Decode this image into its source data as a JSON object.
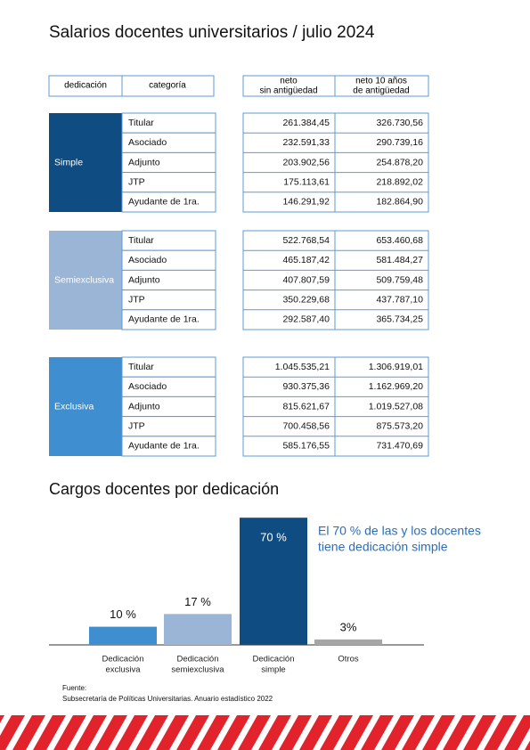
{
  "title": "Salarios docentes universitarios / julio 2024",
  "table": {
    "header": [
      "dedicación",
      "categoría",
      [
        "neto",
        "sin antigüedad"
      ],
      [
        "neto 10 años",
        "de antigüedad"
      ]
    ],
    "groups": [
      {
        "dedicacion": "Simple",
        "color": "#0f4c81",
        "rows": [
          [
            "Titular",
            "261.384,45",
            "326.730,56"
          ],
          [
            "Asociado",
            "232.591,33",
            "290.739,16"
          ],
          [
            "Adjunto",
            "203.902,56",
            "254.878,20"
          ],
          [
            "JTP",
            "175.113,61",
            "218.892,02"
          ],
          [
            "Ayudante de 1ra.",
            "146.291,92",
            "182.864,90"
          ]
        ]
      },
      {
        "dedicacion": "Semiexclusiva",
        "color": "#9bb5d6",
        "rows": [
          [
            "Titular",
            "522.768,54",
            "653.460,68"
          ],
          [
            "Asociado",
            "465.187,42",
            "581.484,27"
          ],
          [
            "Adjunto",
            "407.807,59",
            "509.759,48"
          ],
          [
            "JTP",
            "350.229,68",
            "437.787,10"
          ],
          [
            "Ayudante de 1ra.",
            "292.587,40",
            "365.734,25"
          ]
        ]
      },
      {
        "dedicacion": "Exclusiva",
        "color": "#3f8ed0",
        "rows": [
          [
            "Titular",
            "1.045.535,21",
            "1.306.919,01"
          ],
          [
            "Asociado",
            "930.375,36",
            "1.162.969,20"
          ],
          [
            "Adjunto",
            "815.621,67",
            "1.019.527,08"
          ],
          [
            "JTP",
            "700.458,56",
            "875.573,20"
          ],
          [
            "Ayudante de 1ra.",
            "585.176,55",
            "731.470,69"
          ]
        ]
      }
    ]
  },
  "chart_data": {
    "type": "bar",
    "title": "Cargos docentes por dedicación",
    "categories": [
      [
        "Dedicación",
        "exclusiva"
      ],
      [
        "Dedicación",
        "semiexclusiva"
      ],
      [
        "Dedicación",
        "simple"
      ],
      [
        "Otros"
      ]
    ],
    "values": [
      10,
      17,
      70,
      3
    ],
    "value_labels": [
      "10 %",
      "17 %",
      "70 %",
      "3%"
    ],
    "colors": [
      "#3f8ed0",
      "#9bb5d6",
      "#0f4c81",
      "#a6a6a6"
    ],
    "annotation": [
      "El 70 % de las y los docentes",
      "tiene dedicación simple"
    ],
    "annotation_color": "#2a6ebb"
  },
  "source": [
    "Fuente:",
    "Subsecretaría de Políticas Universitarias. Anuario estadístico 2022"
  ]
}
